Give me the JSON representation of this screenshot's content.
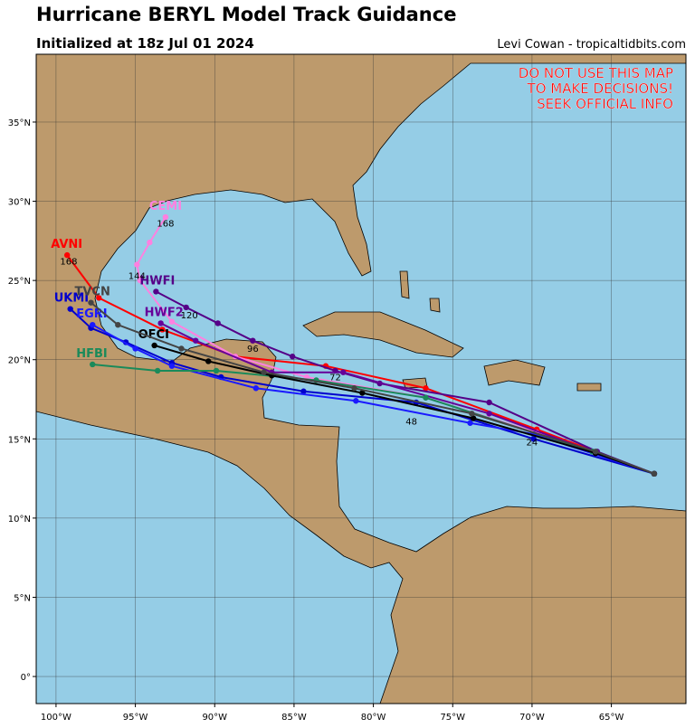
{
  "chart_data": {
    "type": "track-map",
    "title": "Hurricane BERYL Model Track Guidance",
    "subtitle": "Initialized at 18z Jul 01 2024",
    "credit": "Levi Cowan - tropicaltidbits.com",
    "warning": [
      "DO NOT USE THIS MAP",
      "TO MAKE DECISIONS!",
      "SEEK OFFICIAL INFO"
    ],
    "xlim": [
      -101.25,
      -60.3
    ],
    "ylim": [
      -1.71,
      39.28
    ],
    "xticks": [
      {
        "value": -100,
        "label": "100°W"
      },
      {
        "value": -95,
        "label": "95°W"
      },
      {
        "value": -90,
        "label": "90°W"
      },
      {
        "value": -85,
        "label": "85°W"
      },
      {
        "value": -80,
        "label": "80°W"
      },
      {
        "value": -75,
        "label": "75°W"
      },
      {
        "value": -70,
        "label": "70°W"
      },
      {
        "value": -65,
        "label": "65°W"
      }
    ],
    "yticks": [
      {
        "value": 0,
        "label": "0°"
      },
      {
        "value": 5,
        "label": "5°N"
      },
      {
        "value": 10,
        "label": "10°N"
      },
      {
        "value": 15,
        "label": "15°N"
      },
      {
        "value": 20,
        "label": "20°N"
      },
      {
        "value": 25,
        "label": "25°N"
      },
      {
        "value": 30,
        "label": "30°N"
      },
      {
        "value": 35,
        "label": "35°N"
      }
    ],
    "grid": true,
    "series": [
      {
        "name": "AVNI",
        "color": "#ff0000",
        "x": [
          -62.3,
          -69.7,
          -76.7,
          -83.0,
          -88.7,
          -93.3,
          -97.3,
          -99.3
        ],
        "y": [
          12.8,
          15.6,
          18.2,
          19.6,
          20.2,
          21.9,
          23.9,
          26.6
        ]
      },
      {
        "name": "CEMI",
        "color": "#ff80e0",
        "x": [
          -62.3,
          -69.7,
          -76.7,
          -84.2,
          -88.7,
          -92.7,
          -94.7,
          -94.9,
          -94.1,
          -93.1
        ],
        "y": [
          12.8,
          15.4,
          17.6,
          18.9,
          20.2,
          22.4,
          25.0,
          26.0,
          27.4,
          29.0
        ]
      },
      {
        "name": "HWFI",
        "color": "#550088",
        "x": [
          -62.3,
          -65.9,
          -72.7,
          -79.6,
          -82.4,
          -85.1,
          -87.6,
          -89.8,
          -91.8,
          -93.7
        ],
        "y": [
          12.8,
          14.2,
          17.3,
          18.5,
          19.3,
          20.2,
          21.2,
          22.3,
          23.3,
          24.3
        ]
      },
      {
        "name": "HWF2",
        "color": "#660099",
        "x": [
          -62.3,
          -65.9,
          -72.7,
          -81.9,
          -86.4,
          -91.2,
          -93.4
        ],
        "y": [
          12.8,
          14.1,
          16.6,
          19.2,
          19.2,
          21.2,
          22.3
        ]
      },
      {
        "name": "UKMI",
        "color": "#0000cc",
        "x": [
          -62.3,
          -69.9,
          -77.3,
          -84.4,
          -89.6,
          -92.7,
          -95.6,
          -97.8,
          -99.1
        ],
        "y": [
          12.8,
          15.0,
          17.3,
          18.0,
          18.9,
          19.8,
          21.1,
          22.0,
          23.2
        ]
      },
      {
        "name": "EGRI",
        "color": "#1a1aff",
        "x": [
          -62.3,
          -69.9,
          -73.9,
          -81.1,
          -87.4,
          -92.7,
          -95.0,
          -97.7
        ],
        "y": [
          12.8,
          15.3,
          16.0,
          17.4,
          18.2,
          19.6,
          20.7,
          22.2
        ]
      },
      {
        "name": "HFBI",
        "color": "#1a8a5a",
        "x": [
          -62.3,
          -66.2,
          -76.7,
          -83.6,
          -89.9,
          -93.6,
          -97.7
        ],
        "y": [
          12.8,
          14.2,
          17.6,
          18.7,
          19.3,
          19.3,
          19.7
        ]
      },
      {
        "name": "OFCI",
        "color": "#000000",
        "x": [
          -62.3,
          -66.0,
          -73.7,
          -80.7,
          -86.4,
          -90.4,
          -93.8
        ],
        "y": [
          12.8,
          14.1,
          16.3,
          17.9,
          19.0,
          19.9,
          20.9
        ]
      },
      {
        "name": "TVCN",
        "color": "#444444",
        "x": [
          -62.3,
          -66.0,
          -73.8,
          -81.2,
          -86.9,
          -92.1,
          -96.1,
          -97.8
        ],
        "y": [
          12.8,
          14.2,
          16.6,
          18.2,
          19.2,
          20.7,
          22.2,
          23.6
        ]
      }
    ],
    "annotations": [
      {
        "text": "168",
        "x": -93.1,
        "y": 28.4
      },
      {
        "text": "168",
        "x": -99.2,
        "y": 26.0
      },
      {
        "text": "144",
        "x": -94.9,
        "y": 25.1
      },
      {
        "text": "120",
        "x": -91.6,
        "y": 22.6
      },
      {
        "text": "96",
        "x": -87.6,
        "y": 20.5
      },
      {
        "text": "72",
        "x": -82.4,
        "y": 18.7
      },
      {
        "text": "48",
        "x": -77.6,
        "y": 15.9
      },
      {
        "text": "24",
        "x": -70.0,
        "y": 14.6
      }
    ]
  }
}
